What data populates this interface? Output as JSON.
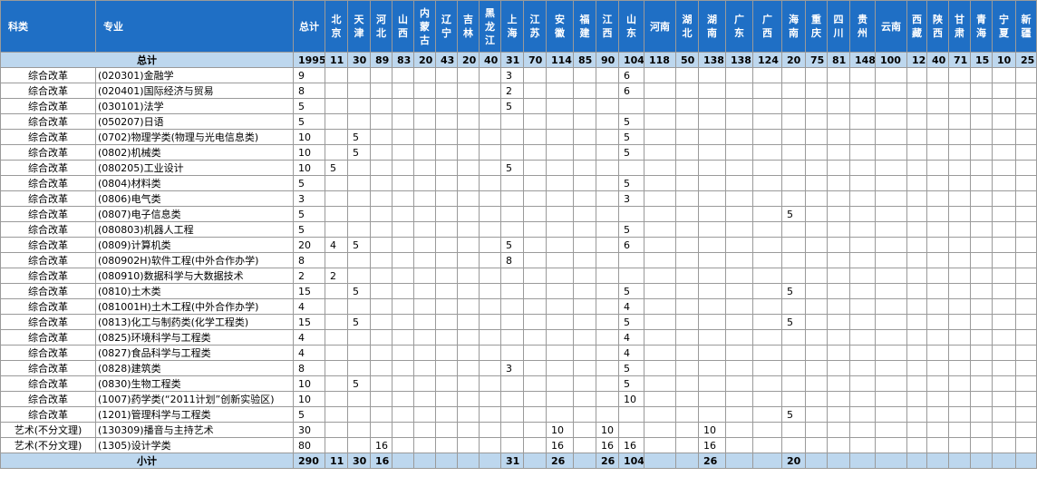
{
  "header": {
    "columns": [
      "科类",
      "专业",
      "总计",
      "北京",
      "天津",
      "河北",
      "山西",
      "内蒙古",
      "辽宁",
      "吉林",
      "黑龙江",
      "上海",
      "江苏",
      "安徽",
      "福建",
      "江西",
      "山东",
      "河南",
      "湖北",
      "湖南",
      "广东",
      "广西",
      "海南",
      "重庆",
      "四川",
      "贵州",
      "云南",
      "西藏",
      "陕西",
      "甘肃",
      "青海",
      "宁夏",
      "新疆"
    ]
  },
  "total_row": {
    "label": "总计",
    "values": [
      1995,
      11,
      30,
      89,
      83,
      20,
      43,
      20,
      40,
      31,
      70,
      114,
      85,
      90,
      104,
      118,
      50,
      138,
      138,
      124,
      20,
      75,
      81,
      148,
      100,
      12,
      40,
      71,
      15,
      10,
      25
    ]
  },
  "rows": [
    {
      "category": "综合改革",
      "major": "(020301)金融学",
      "values": [
        9,
        null,
        null,
        null,
        null,
        null,
        null,
        null,
        null,
        3,
        null,
        null,
        null,
        null,
        6,
        null,
        null,
        null,
        null,
        null,
        null,
        null,
        null,
        null,
        null,
        null,
        null,
        null,
        null,
        null,
        null
      ]
    },
    {
      "category": "综合改革",
      "major": "(020401)国际经济与贸易",
      "values": [
        8,
        null,
        null,
        null,
        null,
        null,
        null,
        null,
        null,
        2,
        null,
        null,
        null,
        null,
        6,
        null,
        null,
        null,
        null,
        null,
        null,
        null,
        null,
        null,
        null,
        null,
        null,
        null,
        null,
        null,
        null
      ]
    },
    {
      "category": "综合改革",
      "major": "(030101)法学",
      "values": [
        5,
        null,
        null,
        null,
        null,
        null,
        null,
        null,
        null,
        5,
        null,
        null,
        null,
        null,
        null,
        null,
        null,
        null,
        null,
        null,
        null,
        null,
        null,
        null,
        null,
        null,
        null,
        null,
        null,
        null,
        null
      ]
    },
    {
      "category": "综合改革",
      "major": "(050207)日语",
      "values": [
        5,
        null,
        null,
        null,
        null,
        null,
        null,
        null,
        null,
        null,
        null,
        null,
        null,
        null,
        5,
        null,
        null,
        null,
        null,
        null,
        null,
        null,
        null,
        null,
        null,
        null,
        null,
        null,
        null,
        null,
        null
      ]
    },
    {
      "category": "综合改革",
      "major": "(0702)物理学类(物理与光电信息类)",
      "values": [
        10,
        null,
        5,
        null,
        null,
        null,
        null,
        null,
        null,
        null,
        null,
        null,
        null,
        null,
        5,
        null,
        null,
        null,
        null,
        null,
        null,
        null,
        null,
        null,
        null,
        null,
        null,
        null,
        null,
        null,
        null
      ]
    },
    {
      "category": "综合改革",
      "major": "(0802)机械类",
      "values": [
        10,
        null,
        5,
        null,
        null,
        null,
        null,
        null,
        null,
        null,
        null,
        null,
        null,
        null,
        5,
        null,
        null,
        null,
        null,
        null,
        null,
        null,
        null,
        null,
        null,
        null,
        null,
        null,
        null,
        null,
        null
      ]
    },
    {
      "category": "综合改革",
      "major": "(080205)工业设计",
      "values": [
        10,
        5,
        null,
        null,
        null,
        null,
        null,
        null,
        null,
        5,
        null,
        null,
        null,
        null,
        null,
        null,
        null,
        null,
        null,
        null,
        null,
        null,
        null,
        null,
        null,
        null,
        null,
        null,
        null,
        null,
        null
      ]
    },
    {
      "category": "综合改革",
      "major": "(0804)材料类",
      "values": [
        5,
        null,
        null,
        null,
        null,
        null,
        null,
        null,
        null,
        null,
        null,
        null,
        null,
        null,
        5,
        null,
        null,
        null,
        null,
        null,
        null,
        null,
        null,
        null,
        null,
        null,
        null,
        null,
        null,
        null,
        null
      ]
    },
    {
      "category": "综合改革",
      "major": "(0806)电气类",
      "values": [
        3,
        null,
        null,
        null,
        null,
        null,
        null,
        null,
        null,
        null,
        null,
        null,
        null,
        null,
        3,
        null,
        null,
        null,
        null,
        null,
        null,
        null,
        null,
        null,
        null,
        null,
        null,
        null,
        null,
        null,
        null
      ]
    },
    {
      "category": "综合改革",
      "major": "(0807)电子信息类",
      "values": [
        5,
        null,
        null,
        null,
        null,
        null,
        null,
        null,
        null,
        null,
        null,
        null,
        null,
        null,
        null,
        null,
        null,
        null,
        null,
        null,
        5,
        null,
        null,
        null,
        null,
        null,
        null,
        null,
        null,
        null,
        null
      ]
    },
    {
      "category": "综合改革",
      "major": "(080803)机器人工程",
      "values": [
        5,
        null,
        null,
        null,
        null,
        null,
        null,
        null,
        null,
        null,
        null,
        null,
        null,
        null,
        5,
        null,
        null,
        null,
        null,
        null,
        null,
        null,
        null,
        null,
        null,
        null,
        null,
        null,
        null,
        null,
        null
      ]
    },
    {
      "category": "综合改革",
      "major": "(0809)计算机类",
      "values": [
        20,
        4,
        5,
        null,
        null,
        null,
        null,
        null,
        null,
        5,
        null,
        null,
        null,
        null,
        6,
        null,
        null,
        null,
        null,
        null,
        null,
        null,
        null,
        null,
        null,
        null,
        null,
        null,
        null,
        null,
        null
      ]
    },
    {
      "category": "综合改革",
      "major": "(080902H)软件工程(中外合作办学)",
      "values": [
        8,
        null,
        null,
        null,
        null,
        null,
        null,
        null,
        null,
        8,
        null,
        null,
        null,
        null,
        null,
        null,
        null,
        null,
        null,
        null,
        null,
        null,
        null,
        null,
        null,
        null,
        null,
        null,
        null,
        null,
        null
      ]
    },
    {
      "category": "综合改革",
      "major": "(080910)数据科学与大数据技术",
      "values": [
        2,
        2,
        null,
        null,
        null,
        null,
        null,
        null,
        null,
        null,
        null,
        null,
        null,
        null,
        null,
        null,
        null,
        null,
        null,
        null,
        null,
        null,
        null,
        null,
        null,
        null,
        null,
        null,
        null,
        null,
        null
      ]
    },
    {
      "category": "综合改革",
      "major": "(0810)土木类",
      "values": [
        15,
        null,
        5,
        null,
        null,
        null,
        null,
        null,
        null,
        null,
        null,
        null,
        null,
        null,
        5,
        null,
        null,
        null,
        null,
        null,
        5,
        null,
        null,
        null,
        null,
        null,
        null,
        null,
        null,
        null,
        null
      ]
    },
    {
      "category": "综合改革",
      "major": "(081001H)土木工程(中外合作办学)",
      "values": [
        4,
        null,
        null,
        null,
        null,
        null,
        null,
        null,
        null,
        null,
        null,
        null,
        null,
        null,
        4,
        null,
        null,
        null,
        null,
        null,
        null,
        null,
        null,
        null,
        null,
        null,
        null,
        null,
        null,
        null,
        null
      ]
    },
    {
      "category": "综合改革",
      "major": "(0813)化工与制药类(化学工程类)",
      "values": [
        15,
        null,
        5,
        null,
        null,
        null,
        null,
        null,
        null,
        null,
        null,
        null,
        null,
        null,
        5,
        null,
        null,
        null,
        null,
        null,
        5,
        null,
        null,
        null,
        null,
        null,
        null,
        null,
        null,
        null,
        null
      ]
    },
    {
      "category": "综合改革",
      "major": "(0825)环境科学与工程类",
      "values": [
        4,
        null,
        null,
        null,
        null,
        null,
        null,
        null,
        null,
        null,
        null,
        null,
        null,
        null,
        4,
        null,
        null,
        null,
        null,
        null,
        null,
        null,
        null,
        null,
        null,
        null,
        null,
        null,
        null,
        null,
        null
      ]
    },
    {
      "category": "综合改革",
      "major": "(0827)食品科学与工程类",
      "values": [
        4,
        null,
        null,
        null,
        null,
        null,
        null,
        null,
        null,
        null,
        null,
        null,
        null,
        null,
        4,
        null,
        null,
        null,
        null,
        null,
        null,
        null,
        null,
        null,
        null,
        null,
        null,
        null,
        null,
        null,
        null
      ]
    },
    {
      "category": "综合改革",
      "major": "(0828)建筑类",
      "values": [
        8,
        null,
        null,
        null,
        null,
        null,
        null,
        null,
        null,
        3,
        null,
        null,
        null,
        null,
        5,
        null,
        null,
        null,
        null,
        null,
        null,
        null,
        null,
        null,
        null,
        null,
        null,
        null,
        null,
        null,
        null
      ]
    },
    {
      "category": "综合改革",
      "major": "(0830)生物工程类",
      "values": [
        10,
        null,
        5,
        null,
        null,
        null,
        null,
        null,
        null,
        null,
        null,
        null,
        null,
        null,
        5,
        null,
        null,
        null,
        null,
        null,
        null,
        null,
        null,
        null,
        null,
        null,
        null,
        null,
        null,
        null,
        null
      ]
    },
    {
      "category": "综合改革",
      "major": "(1007)药学类(“2011计划”创新实验区)",
      "values": [
        10,
        null,
        null,
        null,
        null,
        null,
        null,
        null,
        null,
        null,
        null,
        null,
        null,
        null,
        10,
        null,
        null,
        null,
        null,
        null,
        null,
        null,
        null,
        null,
        null,
        null,
        null,
        null,
        null,
        null,
        null
      ]
    },
    {
      "category": "综合改革",
      "major": "(1201)管理科学与工程类",
      "values": [
        5,
        null,
        null,
        null,
        null,
        null,
        null,
        null,
        null,
        null,
        null,
        null,
        null,
        null,
        null,
        null,
        null,
        null,
        null,
        null,
        5,
        null,
        null,
        null,
        null,
        null,
        null,
        null,
        null,
        null,
        null
      ]
    },
    {
      "category": "艺术(不分文理)",
      "major": "(130309)播音与主持艺术",
      "values": [
        30,
        null,
        null,
        null,
        null,
        null,
        null,
        null,
        null,
        null,
        null,
        10,
        null,
        10,
        null,
        null,
        null,
        10,
        null,
        null,
        null,
        null,
        null,
        null,
        null,
        null,
        null,
        null,
        null,
        null,
        null
      ]
    },
    {
      "category": "艺术(不分文理)",
      "major": "(1305)设计学类",
      "values": [
        80,
        null,
        null,
        16,
        null,
        null,
        null,
        null,
        null,
        null,
        null,
        16,
        null,
        16,
        16,
        null,
        null,
        16,
        null,
        null,
        null,
        null,
        null,
        null,
        null,
        null,
        null,
        null,
        null,
        null,
        null
      ]
    }
  ],
  "subtotal_row": {
    "label": "小计",
    "values": [
      290,
      11,
      30,
      16,
      null,
      null,
      null,
      null,
      null,
      31,
      null,
      26,
      null,
      26,
      104,
      null,
      null,
      26,
      null,
      null,
      20,
      null,
      null,
      null,
      null,
      null,
      null,
      null,
      null,
      null,
      null
    ]
  }
}
